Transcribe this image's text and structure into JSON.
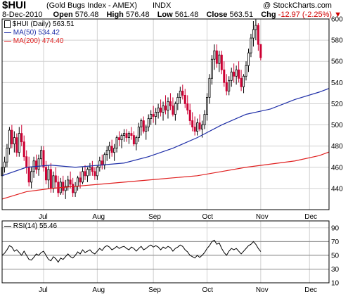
{
  "header": {
    "symbol": "$HUI",
    "subtitle": "(Gold Bugs Index - AMEX)",
    "exchange": "INDX",
    "copyright": "@ StockCharts.com",
    "date": "8-Dec-2010",
    "open_label": "Open",
    "open": "576.48",
    "high_label": "High",
    "high": "576.48",
    "low_label": "Low",
    "low": "561.48",
    "close_label": "Close",
    "close": "563.51",
    "chg_label": "Chg",
    "chg": "-12.97 (-2.25%)",
    "chg_arrow": "▼"
  },
  "legend": {
    "price": "$HUI (Daily) 563.51",
    "ma50": "MA(50) 534.42",
    "ma200": "MA(200) 474.40",
    "rsi": "RSI(14) 55.46"
  },
  "colors": {
    "up": "#000000",
    "down": "#cc0033",
    "ma50": "#1f2fa8",
    "ma200": "#e02020",
    "rsi": "#000000",
    "grid": "#d0d0d0"
  },
  "chart_data": [
    {
      "type": "candlestick",
      "title": "$HUI (Daily) 563.51",
      "ylim": [
        420,
        600
      ],
      "yticks": [
        440,
        460,
        480,
        500,
        520,
        540,
        560,
        580,
        600
      ],
      "x_month_labels": [
        "Jul",
        "Aug",
        "Sep",
        "Oct",
        "Nov",
        "Dec"
      ],
      "x_month_positions": [
        17,
        39,
        62,
        84,
        106,
        126
      ],
      "x_range": [
        0,
        134
      ],
      "series": [
        {
          "name": "MA(50) 534.42",
          "kind": "ma50",
          "x": [
            0,
            10,
            20,
            30,
            40,
            50,
            60,
            70,
            80,
            90,
            100,
            110,
            120,
            130,
            134
          ],
          "values": [
            452,
            460,
            462,
            460,
            462,
            464,
            470,
            478,
            488,
            500,
            510,
            515,
            524,
            531,
            534.42
          ]
        },
        {
          "name": "MA(200) 474.40",
          "kind": "ma200",
          "x": [
            0,
            10,
            20,
            30,
            40,
            50,
            60,
            70,
            80,
            90,
            100,
            110,
            120,
            130,
            134
          ],
          "values": [
            430,
            437,
            440,
            442,
            444,
            446,
            448,
            450,
            452,
            456,
            460,
            463,
            466,
            471,
            474.4
          ]
        }
      ],
      "ohlc": [
        [
          452,
          465,
          448,
          460
        ],
        [
          460,
          470,
          455,
          465
        ],
        [
          465,
          482,
          460,
          478
        ],
        [
          478,
          498,
          472,
          495
        ],
        [
          495,
          500,
          478,
          482
        ],
        [
          482,
          494,
          474,
          488
        ],
        [
          488,
          492,
          470,
          474
        ],
        [
          474,
          498,
          470,
          492
        ],
        [
          492,
          500,
          480,
          484
        ],
        [
          484,
          490,
          466,
          470
        ],
        [
          470,
          476,
          454,
          460
        ],
        [
          460,
          470,
          442,
          446
        ],
        [
          446,
          460,
          440,
          456
        ],
        [
          456,
          470,
          450,
          466
        ],
        [
          466,
          472,
          454,
          458
        ],
        [
          458,
          472,
          452,
          468
        ],
        [
          468,
          480,
          462,
          476
        ],
        [
          476,
          480,
          456,
          460
        ],
        [
          460,
          466,
          444,
          448
        ],
        [
          448,
          462,
          440,
          458
        ],
        [
          458,
          464,
          436,
          440
        ],
        [
          440,
          456,
          436,
          452
        ],
        [
          452,
          460,
          440,
          446
        ],
        [
          446,
          452,
          432,
          436
        ],
        [
          436,
          450,
          434,
          446
        ],
        [
          446,
          452,
          434,
          438
        ],
        [
          438,
          448,
          430,
          442
        ],
        [
          442,
          452,
          438,
          448
        ],
        [
          448,
          456,
          440,
          444
        ],
        [
          444,
          450,
          432,
          436
        ],
        [
          436,
          446,
          432,
          442
        ],
        [
          442,
          452,
          438,
          450
        ],
        [
          450,
          456,
          440,
          446
        ],
        [
          446,
          460,
          444,
          456
        ],
        [
          456,
          462,
          448,
          452
        ],
        [
          452,
          460,
          446,
          458
        ],
        [
          458,
          464,
          452,
          460
        ],
        [
          460,
          466,
          452,
          456
        ],
        [
          456,
          460,
          448,
          452
        ],
        [
          452,
          462,
          448,
          460
        ],
        [
          460,
          470,
          456,
          466
        ],
        [
          466,
          472,
          458,
          462
        ],
        [
          462,
          474,
          458,
          472
        ],
        [
          472,
          480,
          466,
          476
        ],
        [
          476,
          484,
          468,
          480
        ],
        [
          480,
          486,
          470,
          474
        ],
        [
          474,
          482,
          466,
          478
        ],
        [
          478,
          490,
          474,
          488
        ],
        [
          488,
          494,
          480,
          486
        ],
        [
          486,
          492,
          478,
          490
        ],
        [
          490,
          496,
          484,
          492
        ],
        [
          492,
          496,
          484,
          488
        ],
        [
          488,
          494,
          482,
          492
        ],
        [
          492,
          498,
          486,
          490
        ],
        [
          490,
          494,
          480,
          482
        ],
        [
          482,
          490,
          476,
          488
        ],
        [
          488,
          502,
          484,
          498
        ],
        [
          498,
          506,
          490,
          504
        ],
        [
          504,
          508,
          492,
          494
        ],
        [
          494,
          500,
          486,
          498
        ],
        [
          498,
          510,
          494,
          506
        ],
        [
          506,
          514,
          500,
          510
        ],
        [
          510,
          518,
          502,
          508
        ],
        [
          508,
          516,
          500,
          512
        ],
        [
          512,
          520,
          506,
          516
        ],
        [
          516,
          524,
          508,
          512
        ],
        [
          512,
          522,
          504,
          518
        ],
        [
          518,
          528,
          510,
          514
        ],
        [
          514,
          526,
          506,
          522
        ],
        [
          522,
          530,
          514,
          518
        ],
        [
          518,
          526,
          508,
          510
        ],
        [
          510,
          522,
          504,
          520
        ],
        [
          520,
          530,
          514,
          526
        ],
        [
          526,
          536,
          520,
          532
        ],
        [
          532,
          538,
          524,
          528
        ],
        [
          528,
          534,
          516,
          520
        ],
        [
          520,
          528,
          510,
          514
        ],
        [
          514,
          520,
          500,
          504
        ],
        [
          504,
          512,
          494,
          498
        ],
        [
          498,
          508,
          490,
          494
        ],
        [
          494,
          506,
          490,
          502
        ],
        [
          502,
          510,
          494,
          496
        ],
        [
          496,
          504,
          488,
          500
        ],
        [
          500,
          514,
          496,
          510
        ],
        [
          510,
          530,
          504,
          526
        ],
        [
          526,
          548,
          520,
          544
        ],
        [
          544,
          566,
          538,
          562
        ],
        [
          562,
          576,
          552,
          570
        ],
        [
          570,
          576,
          554,
          558
        ],
        [
          558,
          570,
          550,
          566
        ],
        [
          566,
          570,
          548,
          552
        ],
        [
          552,
          560,
          536,
          540
        ],
        [
          540,
          548,
          528,
          532
        ],
        [
          532,
          546,
          528,
          542
        ],
        [
          542,
          554,
          536,
          550
        ],
        [
          550,
          558,
          540,
          546
        ],
        [
          546,
          556,
          538,
          552
        ],
        [
          552,
          560,
          540,
          544
        ],
        [
          544,
          552,
          532,
          536
        ],
        [
          536,
          548,
          530,
          546
        ],
        [
          546,
          560,
          542,
          556
        ],
        [
          556,
          572,
          550,
          568
        ],
        [
          568,
          586,
          564,
          582
        ],
        [
          582,
          598,
          574,
          590
        ],
        [
          590,
          600,
          580,
          594
        ],
        [
          594,
          596,
          570,
          576
        ],
        [
          576,
          576,
          561,
          563.51
        ]
      ]
    },
    {
      "type": "line",
      "title": "RSI(14) 55.46",
      "ylim": [
        10,
        100
      ],
      "yticks": [
        10,
        30,
        50,
        70,
        90
      ],
      "reference_lines": [
        30,
        50,
        70
      ],
      "x_month_labels": [
        "Jul",
        "Aug",
        "Sep",
        "Oct",
        "Nov",
        "Dec"
      ],
      "x_month_positions": [
        17,
        39,
        62,
        84,
        106,
        126
      ],
      "x_range": [
        0,
        134
      ],
      "series": [
        {
          "name": "RSI(14) 55.46",
          "values": [
            50,
            53,
            58,
            64,
            62,
            56,
            58,
            54,
            50,
            56,
            50,
            44,
            43,
            47,
            52,
            50,
            54,
            56,
            50,
            44,
            42,
            48,
            45,
            40,
            46,
            44,
            48,
            52,
            48,
            46,
            50,
            55,
            52,
            58,
            54,
            56,
            58,
            54,
            52,
            56,
            60,
            57,
            62,
            64,
            62,
            58,
            60,
            63,
            60,
            62,
            63,
            60,
            58,
            62,
            60,
            56,
            60,
            63,
            58,
            60,
            63,
            65,
            62,
            64,
            62,
            58,
            62,
            60,
            63,
            61,
            56,
            60,
            62,
            65,
            63,
            58,
            55,
            50,
            48,
            46,
            50,
            47,
            50,
            54,
            60,
            64,
            70,
            72,
            66,
            68,
            60,
            54,
            50,
            56,
            60,
            58,
            60,
            56,
            52,
            56,
            60,
            64,
            66,
            70,
            66,
            60,
            55.46
          ]
        }
      ]
    }
  ]
}
